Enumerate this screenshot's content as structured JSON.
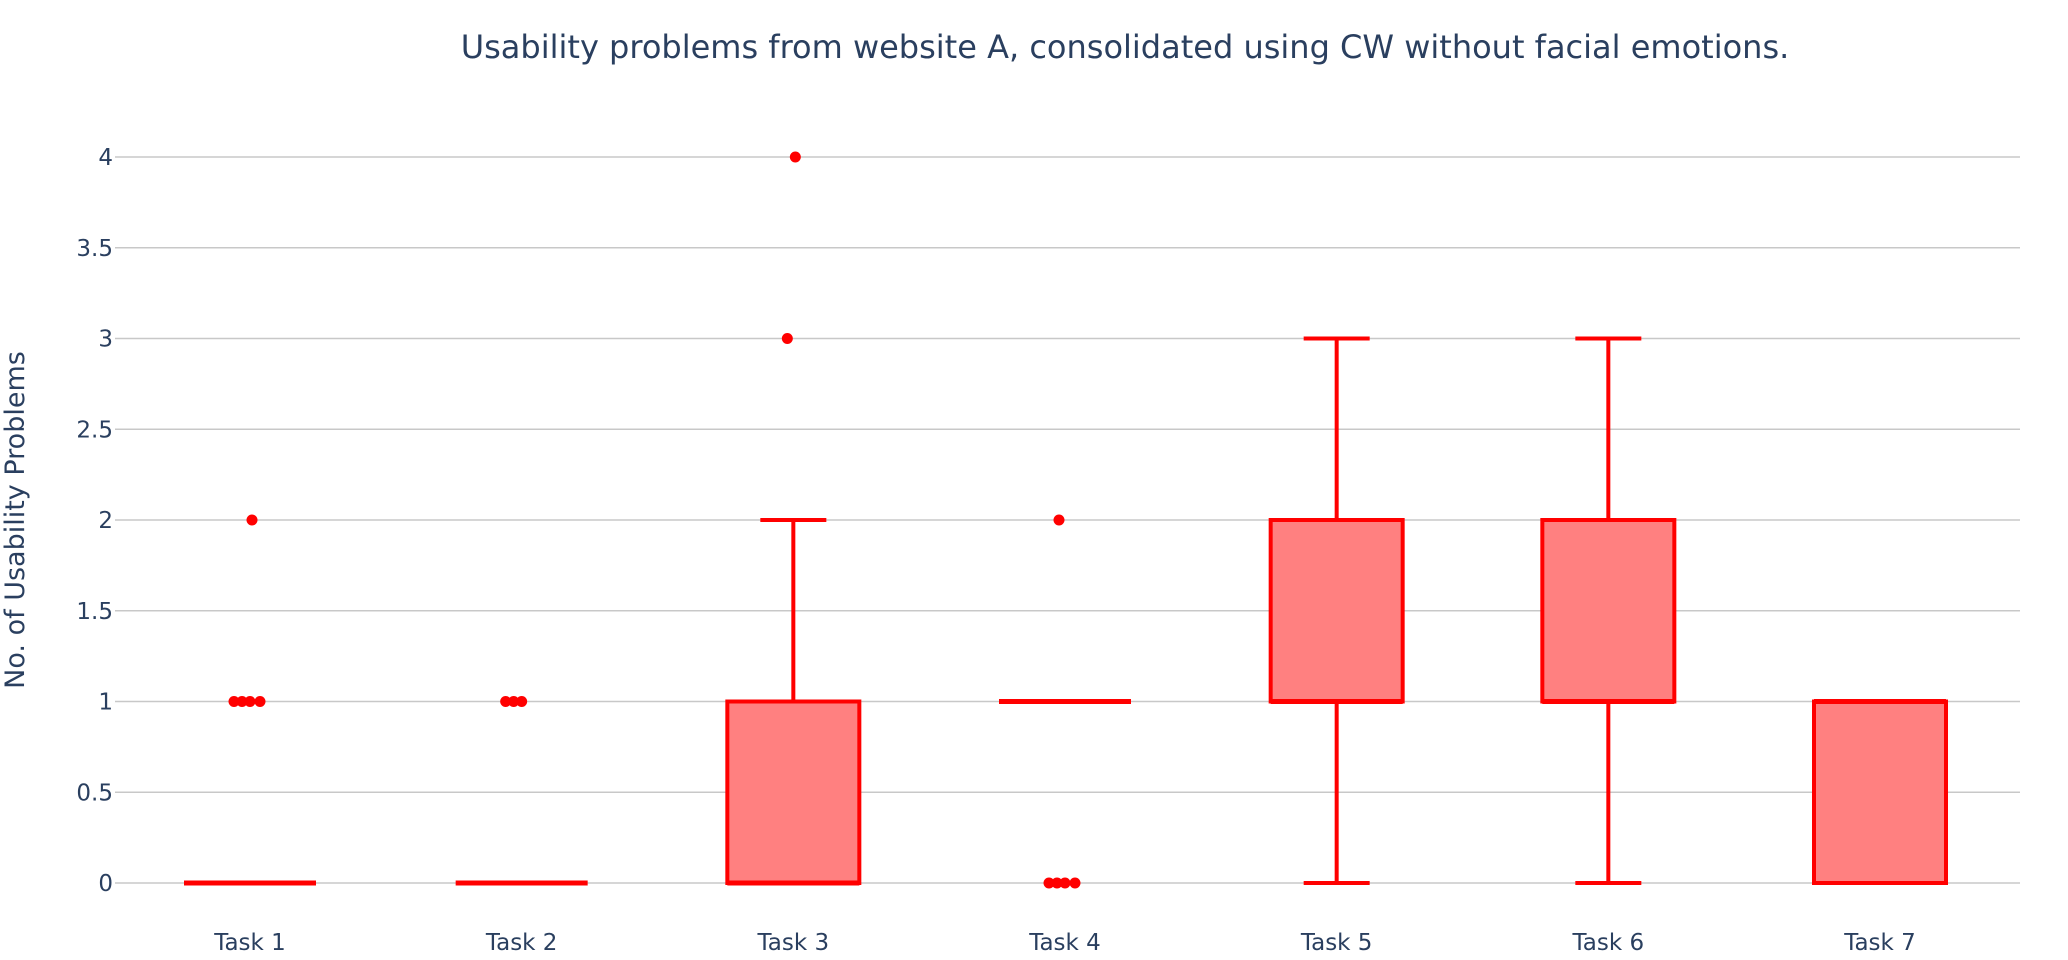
{
  "chart_data": {
    "type": "box",
    "title": "Usability problems from website A, consolidated using CW without facial emotions.",
    "xlabel": "",
    "ylabel": "No. of Usability Problems",
    "ylim": [
      0,
      4
    ],
    "yticks": [
      0,
      0.5,
      1,
      1.5,
      2,
      2.5,
      3,
      3.5,
      4
    ],
    "ytick_labels": [
      "0",
      "0.5",
      "1",
      "1.5",
      "2",
      "2.5",
      "3",
      "3.5",
      "4"
    ],
    "grid": true,
    "legend": "none",
    "categories": [
      "Task 1",
      "Task 2",
      "Task 3",
      "Task 4",
      "Task 5",
      "Task 6",
      "Task 7"
    ],
    "series": [
      {
        "boxes": [
          {
            "category": "Task 1",
            "min": 0,
            "q1": 0,
            "median": 0,
            "q3": 0,
            "max": 0,
            "outliers": [
              1,
              1,
              1,
              1,
              2
            ]
          },
          {
            "category": "Task 2",
            "min": 0,
            "q1": 0,
            "median": 0,
            "q3": 0,
            "max": 0,
            "outliers": [
              1,
              1,
              1
            ]
          },
          {
            "category": "Task 3",
            "min": 0,
            "q1": 0,
            "median": 0,
            "q3": 1,
            "max": 2,
            "outliers": [
              3,
              4
            ]
          },
          {
            "category": "Task 4",
            "min": 1,
            "q1": 1,
            "median": 1,
            "q3": 1,
            "max": 1,
            "outliers": [
              0,
              0,
              0,
              0,
              2
            ]
          },
          {
            "category": "Task 5",
            "min": 0,
            "q1": 1,
            "median": 1,
            "q3": 2,
            "max": 3,
            "outliers": []
          },
          {
            "category": "Task 6",
            "min": 0,
            "q1": 1,
            "median": 1,
            "q3": 2,
            "max": 3,
            "outliers": []
          },
          {
            "category": "Task 7",
            "min": 0,
            "q1": 0,
            "median": 1,
            "q3": 1,
            "max": 1,
            "outliers": []
          }
        ]
      }
    ],
    "colors": {
      "line": "#ff0000",
      "fill": "#ff8080",
      "grid": "#c8c8c8",
      "text": "#2a3f5f"
    }
  }
}
